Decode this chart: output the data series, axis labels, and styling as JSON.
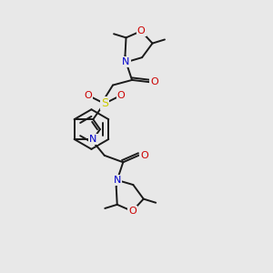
{
  "background_color": "#e8e8e8",
  "bond_color": "#1a1a1a",
  "atom_colors": {
    "N": "#0000cc",
    "O": "#cc0000",
    "S": "#cccc00",
    "C": "#1a1a1a"
  },
  "figsize": [
    3.0,
    3.0
  ],
  "dpi": 100
}
